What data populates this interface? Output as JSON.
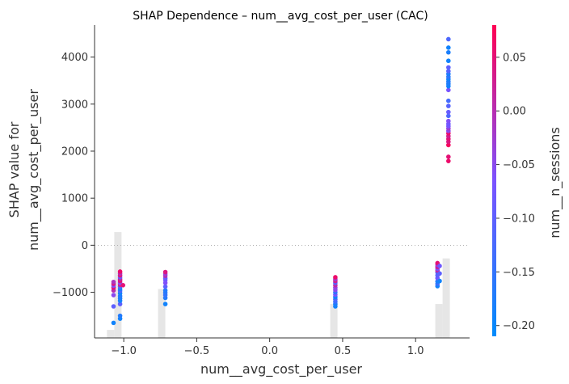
{
  "chart_data": {
    "type": "scatter",
    "title": "SHAP Dependence – num__avg_cost_per_user (CAC)",
    "xlabel": "num__avg_cost_per_user",
    "ylabel_line1": "SHAP value for",
    "ylabel_line2": "num__avg_cost_per_user",
    "xlim": [
      -1.2,
      1.37
    ],
    "ylim": [
      -1970,
      4680
    ],
    "x_ticks": [
      -1.0,
      -0.5,
      0.0,
      0.5,
      1.0
    ],
    "x_tick_labels": [
      "−1.0",
      "−0.5",
      "0.0",
      "0.5",
      "1.0"
    ],
    "y_ticks": [
      -1000,
      0,
      1000,
      2000,
      3000,
      4000
    ],
    "y_tick_labels": [
      "−1000",
      "0",
      "1000",
      "2000",
      "3000",
      "4000"
    ],
    "zero_line": true,
    "grid": false,
    "histogram": {
      "color": "#e6e6e6",
      "bin_width": 0.05,
      "bars": [
        {
          "x": -1.09,
          "top": -1800
        },
        {
          "x": -1.04,
          "top": 280
        },
        {
          "x": -0.74,
          "top": -930
        },
        {
          "x": 0.44,
          "top": -1250
        },
        {
          "x": 1.16,
          "top": -1250
        },
        {
          "x": 1.21,
          "top": -280
        }
      ]
    },
    "colorbar": {
      "label": "num__n_sessions",
      "range": [
        -0.21,
        0.08
      ],
      "ticks": [
        0.05,
        0.0,
        -0.05,
        -0.1,
        -0.15,
        -0.2
      ],
      "tick_labels": [
        "0.05",
        "0.00",
        "−0.05",
        "−0.10",
        "−0.15",
        "−0.20"
      ],
      "color_low": "#008bfb",
      "color_mid": "#7c52ff",
      "color_high": "#ff0052"
    },
    "points": [
      {
        "x": -1.07,
        "y": -1650,
        "c": -0.19
      },
      {
        "x": -1.07,
        "y": -1300,
        "c": -0.1
      },
      {
        "x": -1.07,
        "y": -1060,
        "c": -0.05
      },
      {
        "x": -1.07,
        "y": -960,
        "c": 0.0
      },
      {
        "x": -1.07,
        "y": -900,
        "c": 0.05
      },
      {
        "x": -1.07,
        "y": -860,
        "c": -0.06
      },
      {
        "x": -1.07,
        "y": -820,
        "c": 0.04
      },
      {
        "x": -1.07,
        "y": -780,
        "c": -0.01
      },
      {
        "x": -1.025,
        "y": -1560,
        "c": -0.19
      },
      {
        "x": -1.025,
        "y": -1500,
        "c": -0.17
      },
      {
        "x": -1.025,
        "y": -1250,
        "c": -0.1
      },
      {
        "x": -1.025,
        "y": -1180,
        "c": -0.19
      },
      {
        "x": -1.025,
        "y": -1130,
        "c": -0.18
      },
      {
        "x": -1.025,
        "y": -1080,
        "c": -0.17
      },
      {
        "x": -1.025,
        "y": -1020,
        "c": -0.19
      },
      {
        "x": -1.025,
        "y": -970,
        "c": -0.12
      },
      {
        "x": -1.025,
        "y": -930,
        "c": -0.18
      },
      {
        "x": -1.025,
        "y": -880,
        "c": -0.12
      },
      {
        "x": -1.025,
        "y": -840,
        "c": 0.03
      },
      {
        "x": -1.025,
        "y": -800,
        "c": -0.06
      },
      {
        "x": -1.025,
        "y": -760,
        "c": 0.05
      },
      {
        "x": -1.025,
        "y": -720,
        "c": 0.02
      },
      {
        "x": -1.025,
        "y": -680,
        "c": -0.09
      },
      {
        "x": -1.025,
        "y": -640,
        "c": 0.04
      },
      {
        "x": -1.025,
        "y": -600,
        "c": 0.0
      },
      {
        "x": -1.025,
        "y": -560,
        "c": 0.06
      },
      {
        "x": -1.005,
        "y": -850,
        "c": 0.05
      },
      {
        "x": -0.715,
        "y": -1250,
        "c": -0.19
      },
      {
        "x": -0.715,
        "y": -1120,
        "c": -0.17
      },
      {
        "x": -0.715,
        "y": -1060,
        "c": -0.15
      },
      {
        "x": -0.715,
        "y": -1010,
        "c": -0.16
      },
      {
        "x": -0.715,
        "y": -960,
        "c": -0.17
      },
      {
        "x": -0.715,
        "y": -880,
        "c": -0.1
      },
      {
        "x": -0.715,
        "y": -800,
        "c": -0.06
      },
      {
        "x": -0.715,
        "y": -740,
        "c": -0.07
      },
      {
        "x": -0.715,
        "y": -700,
        "c": -0.09
      },
      {
        "x": -0.715,
        "y": -650,
        "c": 0.0
      },
      {
        "x": -0.715,
        "y": -610,
        "c": -0.03
      },
      {
        "x": -0.715,
        "y": -570,
        "c": 0.04
      },
      {
        "x": 0.45,
        "y": -1300,
        "c": -0.19
      },
      {
        "x": 0.45,
        "y": -1250,
        "c": -0.18
      },
      {
        "x": 0.45,
        "y": -1200,
        "c": -0.14
      },
      {
        "x": 0.45,
        "y": -1150,
        "c": -0.12
      },
      {
        "x": 0.45,
        "y": -1100,
        "c": -0.19
      },
      {
        "x": 0.45,
        "y": -1050,
        "c": -0.07
      },
      {
        "x": 0.45,
        "y": -1000,
        "c": -0.15
      },
      {
        "x": 0.45,
        "y": -950,
        "c": -0.05
      },
      {
        "x": 0.45,
        "y": -900,
        "c": -0.04
      },
      {
        "x": 0.45,
        "y": -850,
        "c": 0.01
      },
      {
        "x": 0.45,
        "y": -800,
        "c": -0.11
      },
      {
        "x": 0.45,
        "y": -760,
        "c": 0.03
      },
      {
        "x": 0.45,
        "y": -720,
        "c": -0.02
      },
      {
        "x": 0.45,
        "y": -680,
        "c": 0.06
      },
      {
        "x": 1.15,
        "y": -870,
        "c": -0.19
      },
      {
        "x": 1.15,
        "y": -820,
        "c": -0.14
      },
      {
        "x": 1.15,
        "y": -770,
        "c": -0.18
      },
      {
        "x": 1.15,
        "y": -700,
        "c": -0.08
      },
      {
        "x": 1.15,
        "y": -640,
        "c": -0.1
      },
      {
        "x": 1.15,
        "y": -580,
        "c": -0.12
      },
      {
        "x": 1.15,
        "y": -540,
        "c": 0.01
      },
      {
        "x": 1.15,
        "y": -500,
        "c": -0.06
      },
      {
        "x": 1.15,
        "y": -460,
        "c": 0.03
      },
      {
        "x": 1.15,
        "y": -420,
        "c": -0.03
      },
      {
        "x": 1.15,
        "y": -380,
        "c": 0.05
      },
      {
        "x": 1.165,
        "y": -760,
        "c": -0.19
      },
      {
        "x": 1.165,
        "y": -600,
        "c": -0.1
      },
      {
        "x": 1.165,
        "y": -440,
        "c": -0.08
      },
      {
        "x": 1.225,
        "y": 1790,
        "c": 0.06
      },
      {
        "x": 1.225,
        "y": 1880,
        "c": 0.05
      },
      {
        "x": 1.225,
        "y": 2130,
        "c": 0.07
      },
      {
        "x": 1.225,
        "y": 2200,
        "c": 0.04
      },
      {
        "x": 1.225,
        "y": 2260,
        "c": 0.05
      },
      {
        "x": 1.225,
        "y": 2320,
        "c": 0.03
      },
      {
        "x": 1.225,
        "y": 2380,
        "c": 0.06
      },
      {
        "x": 1.225,
        "y": 2430,
        "c": -0.05
      },
      {
        "x": 1.225,
        "y": 2480,
        "c": -0.03
      },
      {
        "x": 1.225,
        "y": 2530,
        "c": -0.07
      },
      {
        "x": 1.225,
        "y": 2580,
        "c": -0.08
      },
      {
        "x": 1.225,
        "y": 2640,
        "c": -0.06
      },
      {
        "x": 1.225,
        "y": 2750,
        "c": -0.12
      },
      {
        "x": 1.225,
        "y": 2830,
        "c": -0.09
      },
      {
        "x": 1.225,
        "y": 2960,
        "c": -0.11
      },
      {
        "x": 1.225,
        "y": 3070,
        "c": -0.13
      },
      {
        "x": 1.225,
        "y": 3300,
        "c": -0.07
      },
      {
        "x": 1.225,
        "y": 3380,
        "c": -0.19
      },
      {
        "x": 1.225,
        "y": 3430,
        "c": -0.18
      },
      {
        "x": 1.225,
        "y": 3480,
        "c": -0.17
      },
      {
        "x": 1.225,
        "y": 3530,
        "c": -0.19
      },
      {
        "x": 1.225,
        "y": 3580,
        "c": -0.16
      },
      {
        "x": 1.225,
        "y": 3640,
        "c": -0.18
      },
      {
        "x": 1.225,
        "y": 3700,
        "c": -0.11
      },
      {
        "x": 1.225,
        "y": 3780,
        "c": -0.1
      },
      {
        "x": 1.225,
        "y": 3920,
        "c": -0.19
      },
      {
        "x": 1.225,
        "y": 4100,
        "c": -0.18
      },
      {
        "x": 1.225,
        "y": 4200,
        "c": -0.19
      },
      {
        "x": 1.225,
        "y": 4380,
        "c": -0.12
      }
    ]
  }
}
